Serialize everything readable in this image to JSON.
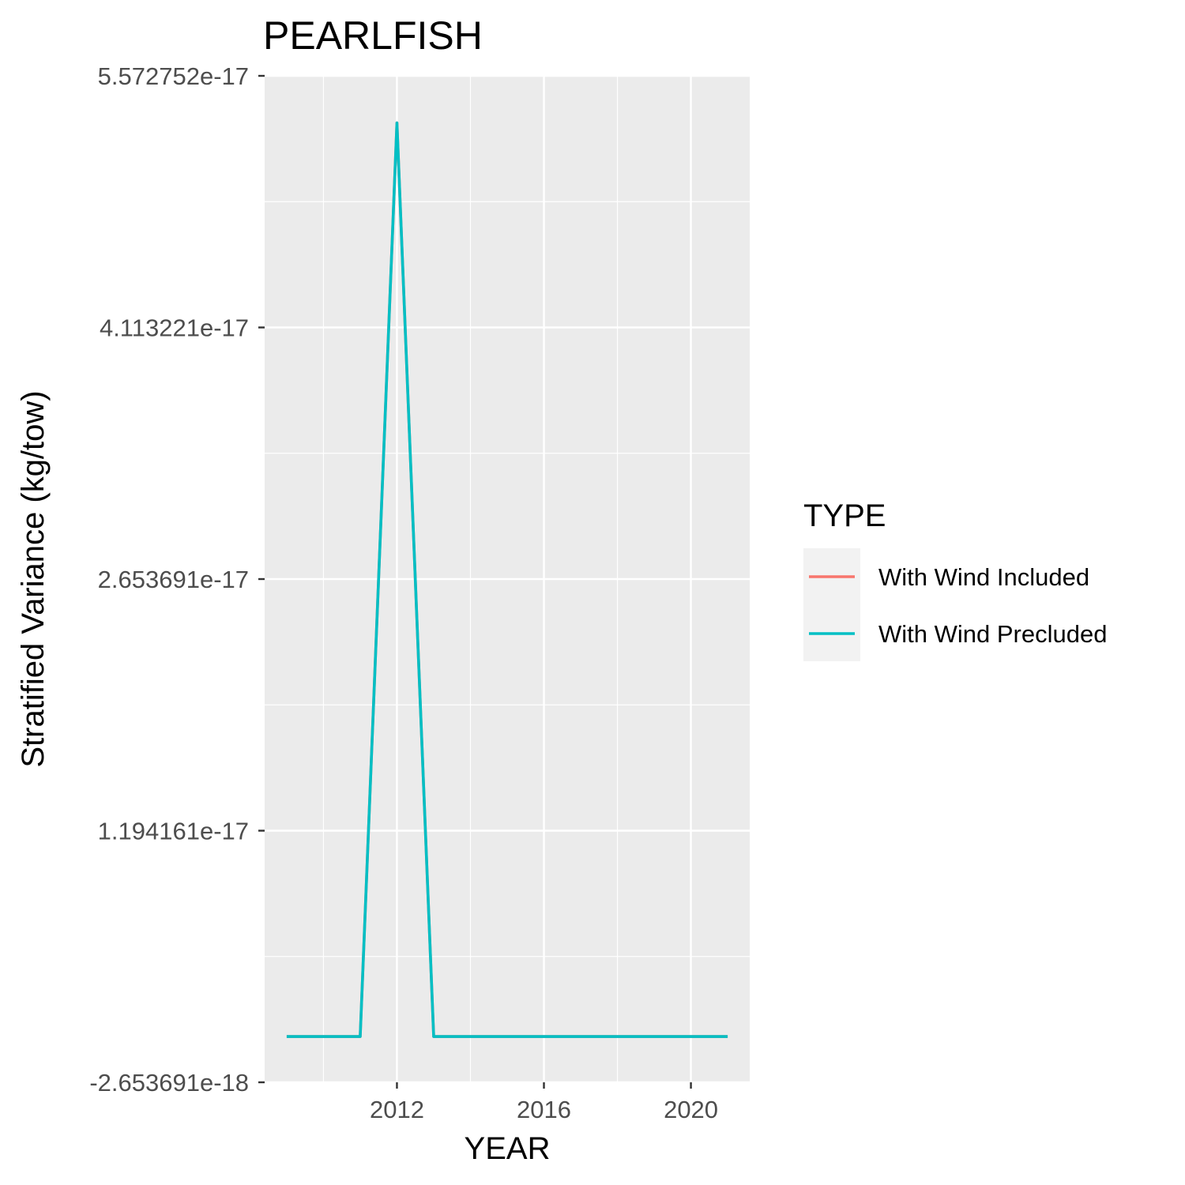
{
  "chart_data": {
    "type": "line",
    "title": "PEARLFISH",
    "xlabel": "YEAR",
    "ylabel": "Stratified Variance (kg/tow)",
    "x_ticks": [
      2012,
      2016,
      2020
    ],
    "y_ticks": [
      {
        "value": -2.653691e-18,
        "label": "-2.653691e-18"
      },
      {
        "value": 1.194161e-17,
        "label": "1.194161e-17"
      },
      {
        "value": 2.653691e-17,
        "label": "2.653691e-17"
      },
      {
        "value": 4.113221e-17,
        "label": "4.113221e-17"
      },
      {
        "value": 5.572752e-17,
        "label": "5.572752e-17"
      }
    ],
    "xlim": [
      2008.4,
      2021.6
    ],
    "ylim": [
      -2.653691e-18,
      5.572752e-17
    ],
    "grid": true,
    "panel_background": "#ebebeb",
    "legend": {
      "title": "TYPE",
      "position": "right"
    },
    "series": [
      {
        "name": "With Wind Included",
        "color": "#f8766d",
        "x": [
          2009,
          2010,
          2011,
          2012,
          2013,
          2014,
          2015,
          2016,
          2017,
          2018,
          2019,
          2020,
          2021
        ],
        "y": [
          0,
          0,
          0,
          5.3e-17,
          0,
          0,
          0,
          0,
          0,
          0,
          0,
          0,
          0
        ]
      },
      {
        "name": "With Wind Precluded",
        "color": "#00bfc4",
        "x": [
          2009,
          2010,
          2011,
          2012,
          2013,
          2014,
          2015,
          2016,
          2017,
          2018,
          2019,
          2020,
          2021
        ],
        "y": [
          0,
          0,
          0,
          5.3e-17,
          0,
          0,
          0,
          0,
          0,
          0,
          0,
          0,
          0
        ]
      }
    ]
  }
}
